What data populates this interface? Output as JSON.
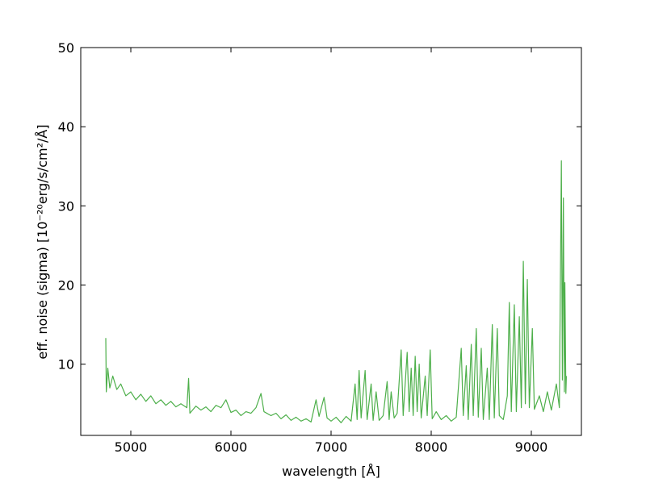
{
  "chart_data": {
    "type": "line",
    "xlabel": "wavelength [Å]",
    "ylabel": "eff. noise  (sigma)  [10⁻²⁰erg/s/cm²/Å]",
    "color": "#4daf4a",
    "xlim": [
      4500,
      9500
    ],
    "xticks": [
      5000,
      6000,
      7000,
      8000,
      9000
    ],
    "ylim": [
      1,
      50
    ],
    "yticks": [
      10,
      20,
      30,
      40,
      50
    ],
    "grid": false,
    "x": [
      4750,
      4755,
      4770,
      4790,
      4820,
      4860,
      4900,
      4950,
      5000,
      5050,
      5100,
      5150,
      5200,
      5250,
      5300,
      5350,
      5400,
      5450,
      5500,
      5560,
      5577,
      5590,
      5650,
      5700,
      5750,
      5800,
      5850,
      5900,
      5950,
      6000,
      6050,
      6100,
      6150,
      6200,
      6250,
      6300,
      6330,
      6400,
      6450,
      6500,
      6550,
      6600,
      6650,
      6700,
      6750,
      6800,
      6850,
      6880,
      6930,
      6960,
      7000,
      7050,
      7100,
      7150,
      7200,
      7240,
      7260,
      7280,
      7300,
      7340,
      7360,
      7400,
      7420,
      7450,
      7480,
      7520,
      7560,
      7580,
      7600,
      7630,
      7660,
      7700,
      7720,
      7760,
      7780,
      7800,
      7820,
      7840,
      7860,
      7880,
      7900,
      7940,
      7960,
      7990,
      8010,
      8050,
      8100,
      8150,
      8200,
      8250,
      8300,
      8320,
      8350,
      8370,
      8400,
      8420,
      8450,
      8470,
      8500,
      8520,
      8560,
      8580,
      8610,
      8630,
      8660,
      8680,
      8720,
      8760,
      8780,
      8800,
      8830,
      8850,
      8880,
      8900,
      8920,
      8940,
      8960,
      8980,
      9010,
      9030,
      9080,
      9120,
      9160,
      9200,
      9250,
      9280,
      9300,
      9310,
      9320,
      9330,
      9335,
      9345,
      9350
    ],
    "values": [
      13.3,
      6.5,
      9.5,
      7,
      8.5,
      6.8,
      7.5,
      6,
      6.5,
      5.5,
      6.2,
      5.3,
      6,
      5,
      5.5,
      4.8,
      5.3,
      4.6,
      5,
      4.5,
      8.2,
      3.8,
      4.7,
      4.2,
      4.6,
      4.0,
      4.8,
      4.5,
      5.5,
      3.9,
      4.2,
      3.5,
      4.0,
      3.8,
      4.5,
      6.3,
      4.0,
      3.5,
      3.8,
      3.1,
      3.6,
      2.9,
      3.3,
      2.8,
      3.1,
      2.7,
      5.5,
      3.4,
      5.8,
      3.2,
      2.8,
      3.3,
      2.6,
      3.4,
      2.8,
      7.5,
      3.0,
      9.2,
      3.2,
      9.2,
      3.0,
      7.5,
      2.9,
      6.5,
      2.9,
      3.5,
      7.8,
      3.0,
      6.5,
      3.2,
      3.8,
      11.8,
      3.5,
      11.5,
      4.0,
      9.5,
      3.5,
      11.0,
      4.0,
      10.0,
      3.2,
      8.5,
      3.5,
      11.8,
      3.1,
      4.0,
      3.0,
      3.5,
      2.8,
      3.3,
      12.0,
      3.5,
      9.8,
      3.0,
      12.5,
      3.5,
      14.5,
      3.3,
      12.0,
      3.0,
      9.5,
      3.0,
      15.0,
      3.2,
      14.5,
      3.5,
      3.0,
      6.0,
      17.8,
      4.0,
      17.5,
      4.0,
      16.0,
      4.5,
      23.0,
      5.0,
      20.7,
      4.5,
      14.5,
      4.3,
      6.0,
      4.0,
      6.5,
      4.2,
      7.5,
      4.5,
      35.7,
      8.0,
      31.0,
      6.5,
      20.3,
      6.3,
      8.5
    ]
  }
}
